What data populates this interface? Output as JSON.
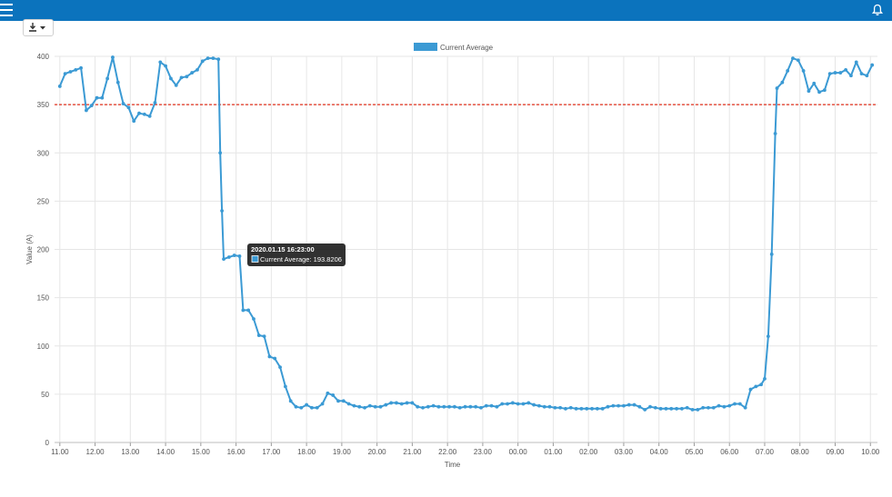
{
  "colors": {
    "topbar": "#0b73bd",
    "series": "#3b9ad4",
    "threshold": "#e0301e",
    "tooltip_bg": "#1f1f1f"
  },
  "topbar": {
    "menu_icon": "hamburger-icon",
    "notification_icon": "bell-icon"
  },
  "toolbar": {
    "download_icon": "download-icon",
    "caret_icon": "caret-down-icon"
  },
  "tooltip": {
    "title": "2020.01.15 16:23:00",
    "line": "Current Average: 193.8206"
  },
  "chart_data": {
    "type": "line",
    "xlabel": "Time",
    "ylabel": "Value (A)",
    "ylim": [
      0,
      400
    ],
    "yticks": [
      "0",
      "50",
      "100",
      "150",
      "200",
      "250",
      "300",
      "350",
      "400"
    ],
    "xticks": [
      "11.00",
      "12.00",
      "13.00",
      "14.00",
      "15.00",
      "16.00",
      "17.00",
      "18.00",
      "19.00",
      "20.00",
      "21.00",
      "22.00",
      "23.00",
      "00.00",
      "01.00",
      "02.00",
      "03.00",
      "04.00",
      "05.00",
      "06.00",
      "07.00",
      "08.00",
      "09.00",
      "10.00"
    ],
    "grid": true,
    "legend": "top-center",
    "threshold": 350,
    "series": [
      {
        "name": "Current Average",
        "points": [
          [
            0.0,
            369
          ],
          [
            0.15,
            382
          ],
          [
            0.3,
            384
          ],
          [
            0.45,
            386
          ],
          [
            0.6,
            388
          ],
          [
            0.75,
            344
          ],
          [
            0.9,
            349
          ],
          [
            1.05,
            357
          ],
          [
            1.2,
            357
          ],
          [
            1.35,
            377
          ],
          [
            1.5,
            399
          ],
          [
            1.65,
            373
          ],
          [
            1.8,
            351
          ],
          [
            1.95,
            347
          ],
          [
            2.1,
            333
          ],
          [
            2.25,
            341
          ],
          [
            2.4,
            340
          ],
          [
            2.55,
            338
          ],
          [
            2.7,
            352
          ],
          [
            2.85,
            394
          ],
          [
            3.0,
            390
          ],
          [
            3.15,
            377
          ],
          [
            3.3,
            370
          ],
          [
            3.45,
            378
          ],
          [
            3.6,
            379
          ],
          [
            3.75,
            383
          ],
          [
            3.9,
            386
          ],
          [
            4.05,
            395
          ],
          [
            4.2,
            398
          ],
          [
            4.35,
            398
          ],
          [
            4.5,
            397
          ],
          [
            4.55,
            300
          ],
          [
            4.6,
            240
          ],
          [
            4.65,
            190
          ],
          [
            4.8,
            192
          ],
          [
            4.95,
            193.8206
          ],
          [
            5.1,
            193
          ],
          [
            5.2,
            137
          ],
          [
            5.35,
            137
          ],
          [
            5.5,
            128
          ],
          [
            5.65,
            111
          ],
          [
            5.8,
            110
          ],
          [
            5.95,
            89
          ],
          [
            6.1,
            87
          ],
          [
            6.25,
            78
          ],
          [
            6.4,
            58
          ],
          [
            6.55,
            43
          ],
          [
            6.7,
            37
          ],
          [
            6.85,
            36
          ],
          [
            7.0,
            39
          ],
          [
            7.15,
            36
          ],
          [
            7.3,
            36
          ],
          [
            7.45,
            40
          ],
          [
            7.6,
            51
          ],
          [
            7.75,
            49
          ],
          [
            7.9,
            43
          ],
          [
            8.05,
            43
          ],
          [
            8.2,
            40
          ],
          [
            8.35,
            38
          ],
          [
            8.5,
            37
          ],
          [
            8.65,
            36
          ],
          [
            8.8,
            38
          ],
          [
            8.95,
            37
          ],
          [
            9.1,
            37
          ],
          [
            9.25,
            39
          ],
          [
            9.4,
            41
          ],
          [
            9.55,
            41
          ],
          [
            9.7,
            40
          ],
          [
            9.85,
            41
          ],
          [
            10.0,
            41
          ],
          [
            10.15,
            37
          ],
          [
            10.3,
            36
          ],
          [
            10.45,
            37
          ],
          [
            10.6,
            38
          ],
          [
            10.75,
            37
          ],
          [
            10.9,
            37
          ],
          [
            11.05,
            37
          ],
          [
            11.2,
            37
          ],
          [
            11.35,
            36
          ],
          [
            11.5,
            37
          ],
          [
            11.65,
            37
          ],
          [
            11.8,
            37
          ],
          [
            11.95,
            36
          ],
          [
            12.1,
            38
          ],
          [
            12.25,
            38
          ],
          [
            12.4,
            37
          ],
          [
            12.55,
            40
          ],
          [
            12.7,
            40
          ],
          [
            12.85,
            41
          ],
          [
            13.0,
            40
          ],
          [
            13.15,
            40
          ],
          [
            13.3,
            41
          ],
          [
            13.45,
            39
          ],
          [
            13.6,
            38
          ],
          [
            13.75,
            37
          ],
          [
            13.9,
            37
          ],
          [
            14.05,
            36
          ],
          [
            14.2,
            36
          ],
          [
            14.35,
            35
          ],
          [
            14.5,
            36
          ],
          [
            14.65,
            35
          ],
          [
            14.8,
            35
          ],
          [
            14.95,
            35
          ],
          [
            15.1,
            35
          ],
          [
            15.25,
            35
          ],
          [
            15.4,
            35
          ],
          [
            15.55,
            37
          ],
          [
            15.7,
            38
          ],
          [
            15.85,
            38
          ],
          [
            16.0,
            38
          ],
          [
            16.15,
            39
          ],
          [
            16.3,
            39
          ],
          [
            16.45,
            37
          ],
          [
            16.6,
            34
          ],
          [
            16.75,
            37
          ],
          [
            16.9,
            36
          ],
          [
            17.05,
            35
          ],
          [
            17.2,
            35
          ],
          [
            17.35,
            35
          ],
          [
            17.5,
            35
          ],
          [
            17.65,
            35
          ],
          [
            17.8,
            36
          ],
          [
            17.95,
            34
          ],
          [
            18.1,
            34
          ],
          [
            18.25,
            36
          ],
          [
            18.4,
            36
          ],
          [
            18.55,
            36
          ],
          [
            18.7,
            38
          ],
          [
            18.85,
            37
          ],
          [
            19.0,
            38
          ],
          [
            19.15,
            40
          ],
          [
            19.3,
            40
          ],
          [
            19.45,
            36
          ],
          [
            19.6,
            55
          ],
          [
            19.75,
            58
          ],
          [
            19.9,
            60
          ],
          [
            20.0,
            66
          ],
          [
            20.1,
            110
          ],
          [
            20.2,
            195
          ],
          [
            20.3,
            320
          ],
          [
            20.35,
            367
          ],
          [
            20.5,
            373
          ],
          [
            20.65,
            385
          ],
          [
            20.8,
            398
          ],
          [
            20.95,
            396
          ],
          [
            21.1,
            385
          ],
          [
            21.25,
            364
          ],
          [
            21.4,
            372
          ],
          [
            21.55,
            363
          ],
          [
            21.7,
            365
          ],
          [
            21.85,
            382
          ],
          [
            22.0,
            383
          ],
          [
            22.15,
            383
          ],
          [
            22.3,
            386
          ],
          [
            22.45,
            380
          ],
          [
            22.6,
            394
          ],
          [
            22.75,
            382
          ],
          [
            22.9,
            380
          ],
          [
            23.05,
            391
          ]
        ]
      }
    ]
  }
}
